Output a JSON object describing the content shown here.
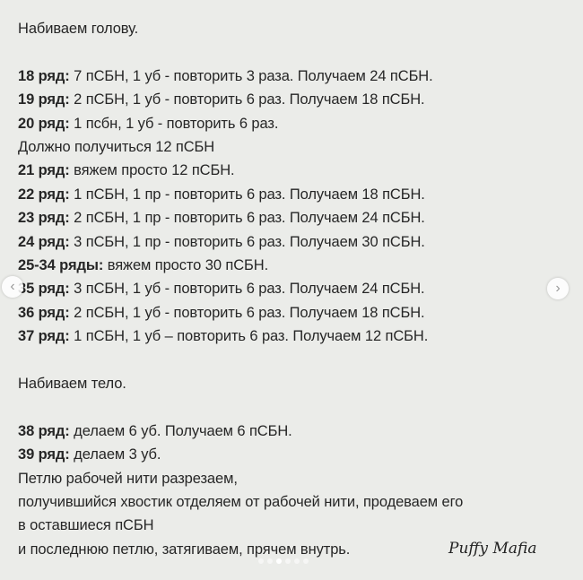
{
  "lines": [
    {
      "bold": "",
      "text": "Набиваем голову."
    },
    {
      "blank": true
    },
    {
      "bold": "18 ряд:",
      "text": " 7 пСБН, 1 уб - повторить 3 раза. Получаем 24 пСБН."
    },
    {
      "bold": "19 ряд:",
      "text": " 2 пСБН, 1 уб - повторить 6 раз. Получаем 18 пСБН."
    },
    {
      "bold": "20 ряд:",
      "text": " 1 псбн, 1 уб - повторить 6 раз."
    },
    {
      "bold": "",
      "text": "Должно получиться 12 пСБН"
    },
    {
      "bold": "21 ряд:",
      "text": " вяжем просто 12 пСБН."
    },
    {
      "bold": "22 ряд:",
      "text": " 1 пСБН, 1 пр - повторить 6 раз. Получаем 18 пСБН."
    },
    {
      "bold": "23 ряд:",
      "text": " 2 пСБН, 1 пр - повторить 6 раз. Получаем 24 пСБН."
    },
    {
      "bold": "24 ряд:",
      "text": " 3 пСБН, 1 пр - повторить 6 раз. Получаем 30 пСБН."
    },
    {
      "bold": "25-34 ряды:",
      "text": " вяжем просто 30 пСБН."
    },
    {
      "bold": "35 ряд:",
      "text": " 3 пСБН, 1 уб - повторить 6 раз. Получаем 24 пСБН."
    },
    {
      "bold": "36 ряд:",
      "text": " 2 пСБН, 1 уб - повторить 6 раз. Получаем 18 пСБН."
    },
    {
      "bold": "37 ряд:",
      "text": " 1 пСБН, 1 уб – повторить 6 раз. Получаем 12 пСБН."
    },
    {
      "blank": true
    },
    {
      "bold": "",
      "text": "Набиваем тело."
    },
    {
      "blank": true
    },
    {
      "bold": "38 ряд:",
      "text": " делаем 6 уб. Получаем 6 пСБН."
    },
    {
      "bold": "39 ряд:",
      "text": " делаем 3 уб."
    },
    {
      "bold": "",
      "text": "Петлю рабочей нити разрезаем,"
    },
    {
      "bold": "",
      "text": "получившийся хвостик отделяем от рабочей нити, продеваем его"
    },
    {
      "bold": "",
      "text": "в оставшиеся пСБН"
    },
    {
      "bold": "",
      "text": "и последнюю петлю, затягиваем, прячем внутрь."
    }
  ],
  "brand": "Puffy Mafia",
  "carousel": {
    "total": 6,
    "active_index": 2,
    "prev_icon": "chevron-left-icon",
    "next_icon": "chevron-right-icon"
  }
}
